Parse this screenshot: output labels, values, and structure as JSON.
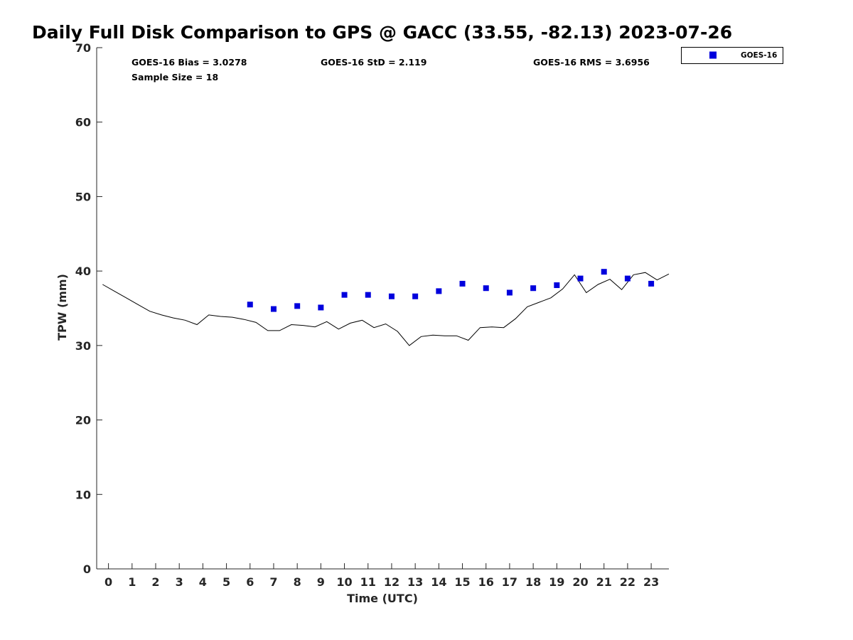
{
  "chart_data": {
    "type": "scatter",
    "title": "Daily Full Disk Comparison to GPS @ GACC (33.55, -82.13) 2023-07-26",
    "xlabel": "Time (UTC)",
    "ylabel": "TPW (mm)",
    "xlim": [
      -0.5,
      23.75
    ],
    "ylim": [
      0,
      70
    ],
    "xticks": [
      0,
      1,
      2,
      3,
      4,
      5,
      6,
      7,
      8,
      9,
      10,
      11,
      12,
      13,
      14,
      15,
      16,
      17,
      18,
      19,
      20,
      21,
      22,
      23
    ],
    "yticks": [
      0,
      10,
      20,
      30,
      40,
      50,
      60,
      70
    ],
    "grid": false,
    "legend_position": "top-right",
    "stats": {
      "bias": "GOES-16 Bias = 3.0278",
      "std": "GOES-16 StD = 2.119",
      "rms": "GOES-16 RMS = 3.6956",
      "sample": "Sample Size = 18"
    },
    "series": [
      {
        "name": "GOES-16",
        "kind": "scatter",
        "color": "#0000dd",
        "marker": "square",
        "x": [
          6,
          7,
          8,
          9,
          10,
          11,
          12,
          13,
          14,
          15,
          16,
          17,
          18,
          19,
          20,
          21,
          22,
          23
        ],
        "y": [
          35.5,
          34.9,
          35.3,
          35.1,
          36.8,
          36.8,
          36.6,
          36.6,
          37.3,
          38.3,
          37.7,
          37.1,
          37.7,
          38.1,
          39.0,
          39.9,
          39.0,
          38.3
        ]
      },
      {
        "kind": "line",
        "color": "#000000",
        "x": [
          -0.25,
          0.25,
          0.75,
          1.25,
          1.75,
          2.25,
          2.75,
          3.25,
          3.75,
          4.25,
          4.75,
          5.25,
          5.75,
          6.25,
          6.75,
          7.25,
          7.75,
          8.25,
          8.75,
          9.25,
          9.75,
          10.25,
          10.75,
          11.25,
          11.75,
          12.25,
          12.75,
          13.25,
          13.75,
          14.25,
          14.75,
          15.25,
          15.75,
          16.25,
          16.75,
          17.25,
          17.75,
          18.25,
          18.75,
          19.25,
          19.75,
          20.25,
          20.75,
          21.25,
          21.75,
          22.25,
          22.75,
          23.25,
          23.75
        ],
        "y": [
          38.2,
          37.3,
          36.4,
          35.5,
          34.6,
          34.1,
          33.7,
          33.4,
          32.8,
          34.1,
          33.9,
          33.8,
          33.5,
          33.1,
          32.0,
          32.0,
          32.8,
          32.7,
          32.5,
          33.2,
          32.2,
          33.0,
          33.4,
          32.4,
          32.9,
          31.9,
          30.0,
          31.2,
          31.4,
          31.3,
          31.3,
          30.7,
          32.4,
          32.5,
          32.4,
          33.6,
          35.2,
          35.8,
          36.4,
          37.6,
          39.5,
          37.1,
          38.2,
          38.9,
          37.5,
          39.5,
          39.8,
          38.8,
          39.6
        ]
      }
    ]
  }
}
